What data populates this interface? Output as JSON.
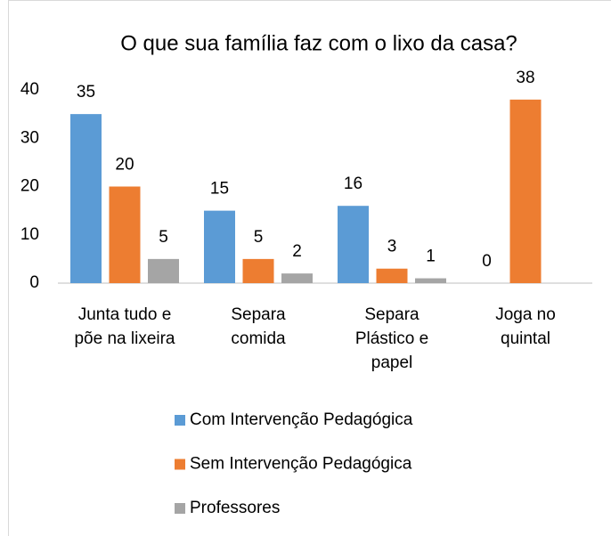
{
  "chart_data": {
    "type": "bar",
    "title": "O que sua família faz com o lixo da casa?",
    "categories": [
      "Junta tudo e\npõe na lixeira",
      "Separa\ncomida",
      "Separa\nPlástico e\npapel",
      "Joga no\nquintal"
    ],
    "series": [
      {
        "name": "Com Intervenção Pedagógica",
        "color": "#5b9bd5",
        "values": [
          35,
          15,
          16,
          0
        ]
      },
      {
        "name": "Sem  Intervenção Pedagógica",
        "color": "#ed7d31",
        "values": [
          20,
          5,
          3,
          38
        ]
      },
      {
        "name": "Professores",
        "color": "#a5a5a5",
        "values": [
          5,
          2,
          1,
          null
        ]
      }
    ],
    "ylim": [
      0,
      40
    ],
    "yticks": [
      0,
      10,
      20,
      30,
      40
    ],
    "grid": false
  }
}
